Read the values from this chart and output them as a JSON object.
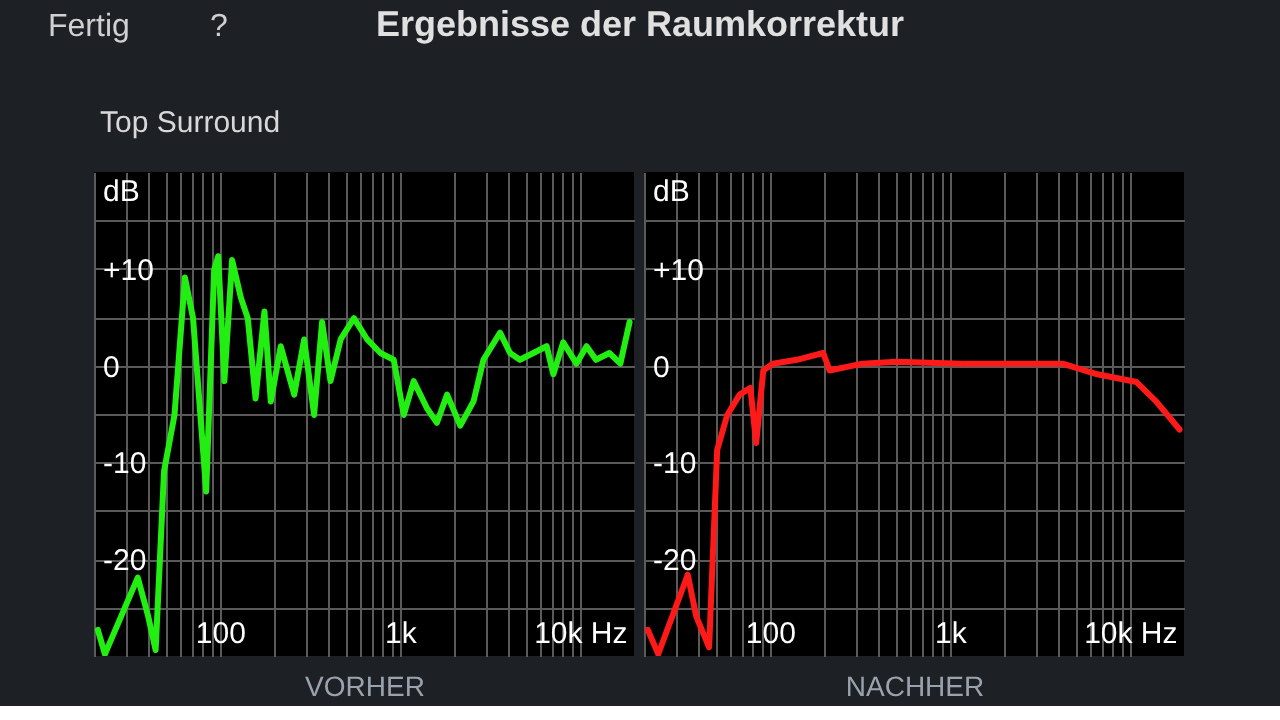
{
  "chart_data": [
    {
      "type": "line",
      "title": "Ergebnisse der Raumkorrektur",
      "subtitle": "Top Surround",
      "annotations": [
        "Fertig",
        "?"
      ],
      "xlabel": "VORHER",
      "ylabel": "dB",
      "log": "x",
      "grid": true,
      "xlim": [
        20,
        20000
      ],
      "ylim": [
        -30,
        20
      ],
      "xticks": [
        {
          "value": 20,
          "label": null
        },
        {
          "value": 30,
          "label": null
        },
        {
          "value": 40,
          "label": null
        },
        {
          "value": 50,
          "label": null
        },
        {
          "value": 60,
          "label": null
        },
        {
          "value": 70,
          "label": null
        },
        {
          "value": 80,
          "label": null
        },
        {
          "value": 90,
          "label": null
        },
        100,
        {
          "value": 200,
          "label": null
        },
        {
          "value": 300,
          "label": null
        },
        {
          "value": 400,
          "label": null
        },
        {
          "value": 500,
          "label": null
        },
        {
          "value": 600,
          "label": null
        },
        {
          "value": 700,
          "label": null
        },
        {
          "value": 800,
          "label": null
        },
        {
          "value": 900,
          "label": null
        },
        {
          "value": 1000,
          "label": "1k"
        },
        {
          "value": 2000,
          "label": null
        },
        {
          "value": 3000,
          "label": null
        },
        {
          "value": 4000,
          "label": null
        },
        {
          "value": 5000,
          "label": null
        },
        {
          "value": 6000,
          "label": null
        },
        {
          "value": 7000,
          "label": null
        },
        {
          "value": 8000,
          "label": null
        },
        {
          "value": 9000,
          "label": null
        },
        {
          "value": 10000,
          "label": "10k Hz"
        }
      ],
      "yticks": [
        {
          "value": -25,
          "label": null
        },
        -20,
        {
          "value": -15,
          "label": null
        },
        -10,
        {
          "value": -5,
          "label": null
        },
        0,
        {
          "value": 5,
          "label": null
        },
        {
          "value": 10,
          "label": "+10"
        },
        {
          "value": 15,
          "label": null
        }
      ],
      "x": [
        21,
        23,
        35,
        40,
        44,
        49,
        56,
        64,
        71,
        84,
        93,
        98,
        106,
        117,
        131,
        143,
        158,
        177,
        192,
        218,
        259,
        294,
        334,
        370,
        412,
        469,
        556,
        659,
        780,
        925,
        1052,
        1194,
        1415,
        1607,
        1831,
        2167,
        2567,
        2915,
        3606,
        4095,
        4645,
        5522,
        6546,
        7126,
        8085,
        9581,
        10900,
        12300,
        14600,
        16800,
        18900
      ],
      "series": [
        {
          "color": "#22ee11",
          "values": [
            -27.3,
            -29.8,
            -21.9,
            -25.9,
            -29.4,
            -10.9,
            -5.1,
            9.1,
            4.9,
            -13,
            9.9,
            11.3,
            -1.6,
            10.9,
            7,
            4.9,
            -3.4,
            5.6,
            -3.7,
            2,
            -3,
            2.7,
            -5.1,
            4.5,
            -1.6,
            2.7,
            4.9,
            2.7,
            1.3,
            0.6,
            -5.1,
            -1.6,
            -4.4,
            -5.9,
            -3,
            -6.2,
            -3.7,
            0.6,
            3.4,
            1.3,
            0.6,
            1.3,
            2,
            -0.9,
            2.4,
            0.2,
            2,
            0.6,
            1.3,
            0.2,
            4.5
          ]
        }
      ]
    },
    {
      "type": "line",
      "xlabel": "NACHHER",
      "ylabel": "dB",
      "log": "x",
      "grid": true,
      "xlim": [
        20,
        20000
      ],
      "ylim": [
        -30,
        20
      ],
      "xticks": [
        {
          "value": 20,
          "label": null
        },
        {
          "value": 30,
          "label": null
        },
        {
          "value": 40,
          "label": null
        },
        {
          "value": 50,
          "label": null
        },
        {
          "value": 60,
          "label": null
        },
        {
          "value": 70,
          "label": null
        },
        {
          "value": 80,
          "label": null
        },
        {
          "value": 90,
          "label": null
        },
        100,
        {
          "value": 200,
          "label": null
        },
        {
          "value": 300,
          "label": null
        },
        {
          "value": 400,
          "label": null
        },
        {
          "value": 500,
          "label": null
        },
        {
          "value": 600,
          "label": null
        },
        {
          "value": 700,
          "label": null
        },
        {
          "value": 800,
          "label": null
        },
        {
          "value": 900,
          "label": null
        },
        {
          "value": 1000,
          "label": "1k"
        },
        {
          "value": 2000,
          "label": null
        },
        {
          "value": 3000,
          "label": null
        },
        {
          "value": 4000,
          "label": null
        },
        {
          "value": 5000,
          "label": null
        },
        {
          "value": 6000,
          "label": null
        },
        {
          "value": 7000,
          "label": null
        },
        {
          "value": 8000,
          "label": null
        },
        {
          "value": 9000,
          "label": null
        },
        {
          "value": 10000,
          "label": "10k Hz"
        }
      ],
      "yticks": [
        {
          "value": -25,
          "label": null
        },
        -20,
        {
          "value": -15,
          "label": null
        },
        -10,
        {
          "value": -5,
          "label": null
        },
        0,
        {
          "value": 5,
          "label": null
        },
        {
          "value": 10,
          "label": "+10"
        },
        {
          "value": 15,
          "label": null
        }
      ],
      "x": [
        21,
        24,
        35,
        39,
        46,
        51,
        58,
        68,
        78,
        84,
        92,
        104,
        141,
        198,
        215,
        327,
        505,
        1166,
        2707,
        4230,
        6604,
        10900,
        14000,
        18900
      ],
      "series": [
        {
          "color": "#ff1a1a",
          "values": [
            -27.3,
            -29.8,
            -21.6,
            -25.9,
            -29.1,
            -8.7,
            -5.1,
            -3,
            -2.3,
            -8,
            -0.5,
            0.2,
            0.6,
            1.3,
            -0.5,
            0.2,
            0.4,
            0.2,
            0.2,
            0.2,
            -0.9,
            -1.7,
            -3.7,
            -6.6
          ]
        }
      ]
    }
  ]
}
